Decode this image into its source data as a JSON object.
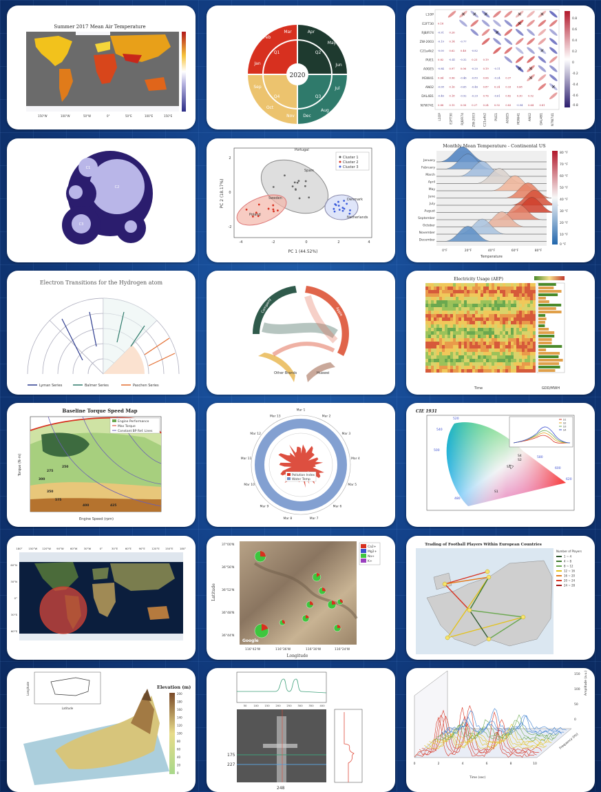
{
  "colors": {
    "background": "#123f86",
    "panel": "#ffffff",
    "red": "#d7301f",
    "darkgreen": "#1e3a2f",
    "teal": "#2f7a6b",
    "orange": "#e36c2f",
    "lavender": "#b9b6e8",
    "navy": "#2b1d6e"
  },
  "panels": {
    "p1": {
      "title": "Summer 2017 Mean Air Temperature",
      "xticks": [
        "150°W",
        "100°W",
        "50°W",
        "0°",
        "50°E",
        "100°E",
        "150°E"
      ]
    },
    "p2": {
      "center": "2020",
      "months": [
        "Jan",
        "Feb",
        "Mar",
        "Apr",
        "May",
        "Jun",
        "Jul",
        "Aug",
        "Sep",
        "Oct",
        "Nov",
        "Dec"
      ],
      "quarters": [
        "Q1",
        "Q2",
        "Q3",
        "Q4"
      ]
    },
    "p3": {
      "labels": [
        "L1OP",
        "E2FT30",
        "RJ8/R74",
        "ZW-2003",
        "C21a4k2",
        "PUE1",
        "A0GE5",
        "M3W41",
        "AN02",
        "DAL4B1",
        "N7W741"
      ],
      "cbar": [
        "0.8",
        "0.6",
        "0.4",
        "0.2",
        "0",
        "-0.2",
        "-0.4",
        "-0.6",
        "-0.8"
      ]
    },
    "p4": {
      "circles": [
        "C1",
        "C2",
        "C3"
      ]
    },
    "p5": {
      "xlabel": "PC 1 (44.52%)",
      "ylabel": "PC 2 (18.17%)",
      "legend": [
        "Cluster 1",
        "Cluster 2",
        "Cluster 3"
      ],
      "xticks": [
        "-4",
        "-2",
        "0",
        "2",
        "4"
      ],
      "yticks": [
        "2",
        "0",
        "-2"
      ],
      "points": [
        "Portugal",
        "Spain",
        "Sweden",
        "Denmark",
        "Netherlands",
        "Poland"
      ]
    },
    "p6": {
      "title": "Monthly Mean Temperature - Continental US",
      "months": [
        "January",
        "February",
        "March",
        "April",
        "May",
        "June",
        "July",
        "August",
        "September",
        "October",
        "November",
        "December"
      ],
      "xticks": [
        "0°F",
        "20°F",
        "40°F",
        "60°F",
        "80°F"
      ],
      "xlabel": "Temperature",
      "cbar": [
        "80 °F",
        "70 °F",
        "60 °F",
        "50 °F",
        "40 °F",
        "30 °F",
        "20 °F",
        "10 °F",
        "0 °F"
      ]
    },
    "p7": {
      "title": "Electron Transitions for the Hydrogen atom",
      "series": [
        "Lyman Series",
        "Balmer Series",
        "Paschen Series"
      ]
    },
    "p8": {
      "segments": [
        "Company",
        "Apple",
        "Other Brands",
        "Huawei"
      ]
    },
    "p9": {
      "title": "Electricity Usage (AEP)",
      "xlabel": "Time",
      "ylabel2": "GDD/MWH"
    },
    "p10": {
      "title": "Baseline Torque Speed Map",
      "legend": [
        "Engine Performance",
        "Max Torque",
        "Constant BP Ref. Lines"
      ],
      "xlabel": "Engine Speed (rpm)",
      "ylabel": "Torque (N-m)",
      "contours": [
        "250",
        "275",
        "300",
        "350",
        "575",
        "400",
        "425"
      ]
    },
    "p11": {
      "months": [
        "Mar 1",
        "Mar 2",
        "Mar 3",
        "Mar 4",
        "Mar 5",
        "Mar 6",
        "Mar 7",
        "Mar 8",
        "Mar 9",
        "Mar 10",
        "Mar 11",
        "Mar 12",
        "Mar 13"
      ],
      "legend": [
        "Pollution Index",
        "Water Temp"
      ]
    },
    "p12": {
      "title": "CIE 1931",
      "labels": [
        "520",
        "540",
        "560",
        "580",
        "600",
        "620",
        "500",
        "480",
        "S1",
        "S2",
        "S3",
        "S4"
      ],
      "inset_legend": [
        "S1",
        "S2",
        "S3",
        "S4"
      ]
    },
    "p13": {
      "lat": [
        "60°N",
        "30°N",
        "0°",
        "30°S",
        "60°S"
      ],
      "lon": [
        "180°",
        "150°W",
        "120°W",
        "90°W",
        "60°W",
        "30°W",
        "0°",
        "30°E",
        "60°E",
        "90°E",
        "120°E",
        "150°E",
        "180°"
      ]
    },
    "p14": {
      "legend": [
        "Ca2+",
        "Mg2+",
        "Na+",
        "K+"
      ],
      "yticks": [
        "37°00'N",
        "36°56'N",
        "36°52'N",
        "36°48'N",
        "36°44'N"
      ],
      "xticks": [
        "116°42'W",
        "116°36'W",
        "116°30'W",
        "116°24'W"
      ],
      "xlabel": "Longitude",
      "ylabel": "Latitude",
      "credit": "Google"
    },
    "p15": {
      "title": "Trading of Football Players Within European Countries",
      "legend_title": "Number of Players",
      "legend": [
        "1 ~ 4",
        "4 ~ 8",
        "8 ~ 12",
        "12 ~ 16",
        "16 ~ 20",
        "20 ~ 24",
        "24 ~ 28"
      ]
    },
    "p16": {
      "title": "Elevation (m)",
      "inset_x": "Latitude",
      "inset_y": "Longitude",
      "cbar": [
        "200",
        "180",
        "160",
        "140",
        "120",
        "100",
        "80",
        "60",
        "40",
        "20",
        "0"
      ]
    },
    "p17": {
      "marks": [
        "175",
        "227",
        "248"
      ],
      "xticks": [
        "50",
        "100",
        "150",
        "200",
        "250",
        "300",
        "350",
        "400"
      ]
    },
    "p18": {
      "xlabel": "Time (sec)",
      "ylabel": "Amplitude (a.u.)",
      "zlabel": "Frequency (Hz)",
      "xticks": [
        "0",
        "2",
        "4",
        "6",
        "8",
        "10"
      ],
      "zticks": [
        "150",
        "100",
        "50",
        "0"
      ]
    }
  }
}
